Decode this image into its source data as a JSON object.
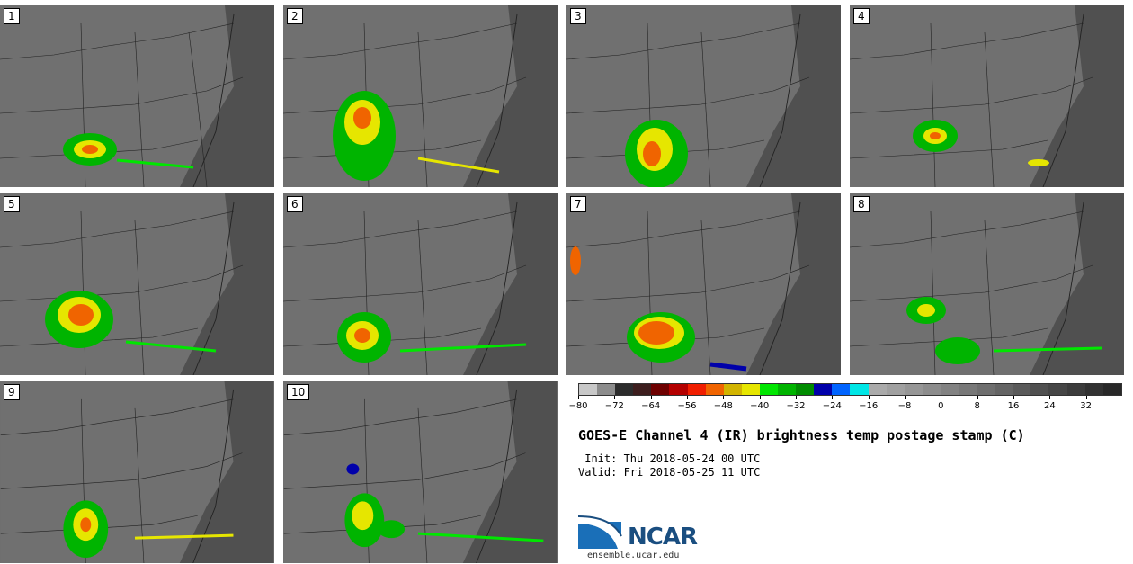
{
  "panels": [
    {
      "label": "1"
    },
    {
      "label": "2"
    },
    {
      "label": "3"
    },
    {
      "label": "4"
    },
    {
      "label": "5"
    },
    {
      "label": "6"
    },
    {
      "label": "7"
    },
    {
      "label": "8"
    },
    {
      "label": "9"
    },
    {
      "label": "10"
    }
  ],
  "colorbar": {
    "colors": [
      "#c8c8c8",
      "#8c8c8c",
      "#2c2c2c",
      "#3d1e1e",
      "#6e0000",
      "#b40000",
      "#f01e00",
      "#f06400",
      "#d2b400",
      "#e6e600",
      "#00e600",
      "#00b400",
      "#008c00",
      "#0000aa",
      "#0064ff",
      "#00e6e6",
      "#aaaaaa",
      "#a0a0a0",
      "#969696",
      "#8c8c8c",
      "#828282",
      "#787878",
      "#6e6e6e",
      "#646464",
      "#5a5a5a",
      "#505050",
      "#464646",
      "#3c3c3c",
      "#323232",
      "#282828"
    ],
    "tick_labels": [
      "−80",
      "−72",
      "−64",
      "−56",
      "−48",
      "−40",
      "−32",
      "−24",
      "−16",
      "−8",
      "0",
      "8",
      "16",
      "24",
      "32"
    ]
  },
  "title": "GOES-E Channel 4 (IR) brightness temp postage stamp (C)",
  "init": " Init: Thu 2018-05-24 00 UTC",
  "valid": "Valid: Fri 2018-05-25 11 UTC",
  "logo": {
    "name": "NCAR",
    "url": "ensemble.ucar.edu"
  }
}
